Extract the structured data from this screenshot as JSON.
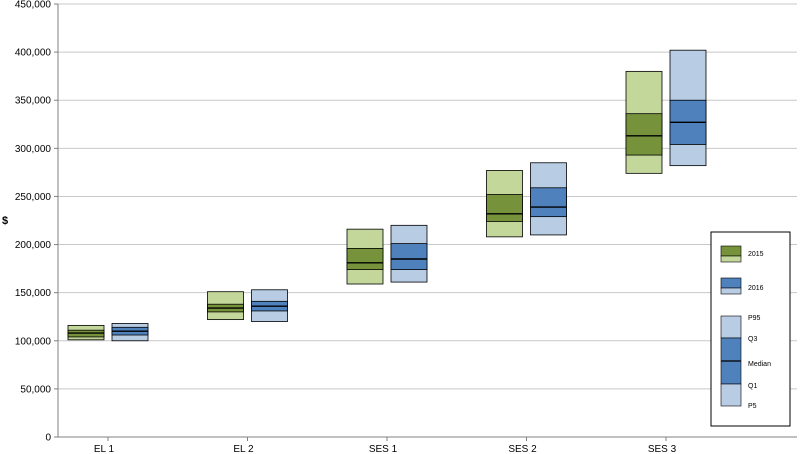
{
  "chart_data": {
    "type": "box",
    "title": "",
    "ylabel": "$",
    "xlabel": "",
    "ylim": [
      0,
      450000
    ],
    "yticks": [
      0,
      50000,
      100000,
      150000,
      200000,
      250000,
      300000,
      350000,
      400000,
      450000
    ],
    "ytick_labels": [
      "0",
      "50,000",
      "100,000",
      "150,000",
      "200,000",
      "250,000",
      "300,000",
      "350,000",
      "400,000",
      "450,000"
    ],
    "grid": true,
    "categories": [
      "EL 1",
      "EL 2",
      "SES 1",
      "SES 2",
      "SES 3"
    ],
    "series": [
      {
        "name": "2015",
        "colors": {
          "outer": "#c4d79b",
          "inner": "#76933c"
        },
        "values": [
          {
            "p5": 101000,
            "q1": 104000,
            "median": 108000,
            "q3": 111000,
            "p95": 116000
          },
          {
            "p5": 122000,
            "q1": 130000,
            "median": 134000,
            "q3": 138000,
            "p95": 151000
          },
          {
            "p5": 159000,
            "q1": 174000,
            "median": 181000,
            "q3": 196000,
            "p95": 216000
          },
          {
            "p5": 208000,
            "q1": 224000,
            "median": 232000,
            "q3": 252000,
            "p95": 277000
          },
          {
            "p5": 274000,
            "q1": 293000,
            "median": 313000,
            "q3": 336000,
            "p95": 380000
          }
        ]
      },
      {
        "name": "2016",
        "colors": {
          "outer": "#b8cce4",
          "inner": "#4f81bd"
        },
        "values": [
          {
            "p5": 100000,
            "q1": 106000,
            "median": 110000,
            "q3": 114000,
            "p95": 118000
          },
          {
            "p5": 120000,
            "q1": 131000,
            "median": 136000,
            "q3": 141000,
            "p95": 153000
          },
          {
            "p5": 161000,
            "q1": 174000,
            "median": 185000,
            "q3": 201000,
            "p95": 220000
          },
          {
            "p5": 210000,
            "q1": 229000,
            "median": 239000,
            "q3": 259000,
            "p95": 285000
          },
          {
            "p5": 282000,
            "q1": 304000,
            "median": 327000,
            "q3": 350000,
            "p95": 402000
          }
        ]
      }
    ],
    "legend": {
      "placement": "right",
      "series_labels": [
        "2015",
        "2016"
      ],
      "stat_labels": [
        "P95",
        "Q3",
        "Median",
        "Q1",
        "P5"
      ]
    }
  }
}
